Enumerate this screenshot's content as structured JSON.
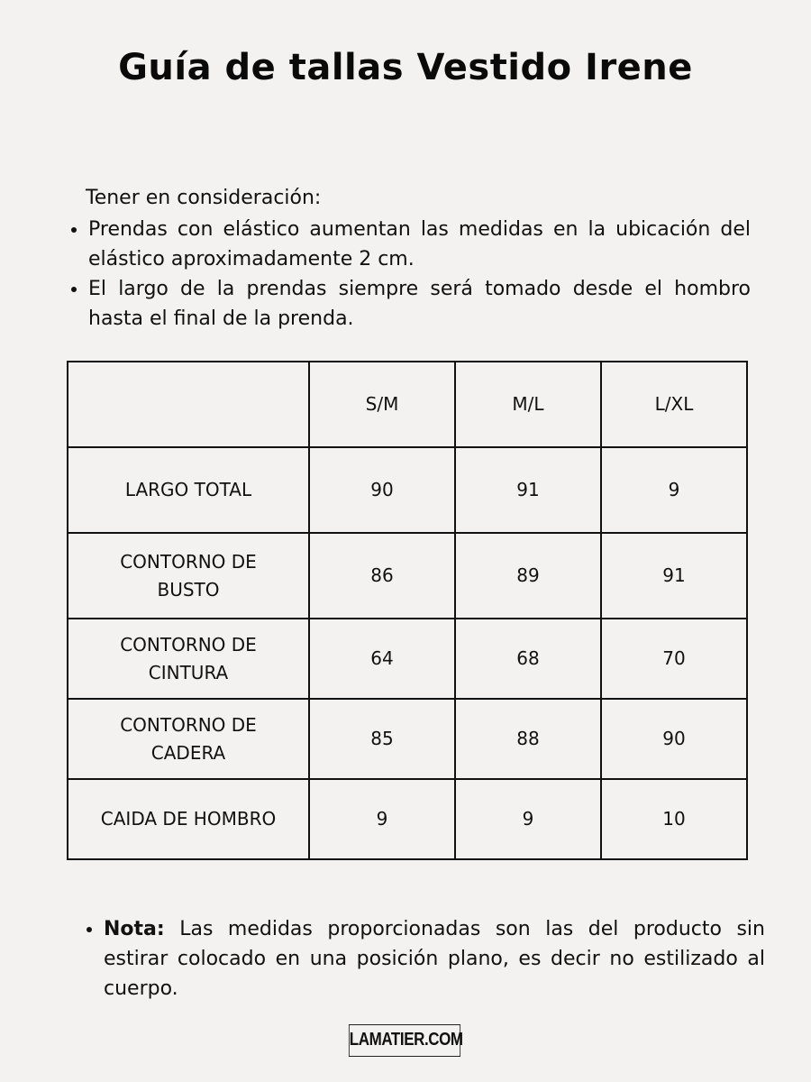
{
  "title": "Guía de tallas Vestido Irene",
  "consideration": {
    "heading": "Tener en consideración:",
    "items": [
      "Prendas con elástico aumentan las medidas en la ubicación del elástico aproximadamente 2 cm.",
      "El largo de la prendas siempre será tomado desde el hombro hasta el final de la prenda."
    ]
  },
  "table": {
    "headers": [
      "",
      "S/M",
      "M/L",
      "L/XL"
    ],
    "rows": [
      [
        "LARGO TOTAL",
        "90",
        "91",
        "9"
      ],
      [
        "CONTORNO DE BUSTO",
        "86",
        "89",
        "91"
      ],
      [
        "CONTORNO DE CINTURA",
        "64",
        "68",
        "70"
      ],
      [
        "CONTORNO DE CADERA",
        "85",
        "88",
        "90"
      ],
      [
        "CAIDA DE HOMBRO",
        "9",
        "9",
        "10"
      ]
    ]
  },
  "note": {
    "label": "Nota:",
    "text": "Las medidas proporcionadas son las del producto sin estirar colocado en una posición plano, es decir no estilizado al cuerpo."
  },
  "logo": "LAMATIER.COM"
}
